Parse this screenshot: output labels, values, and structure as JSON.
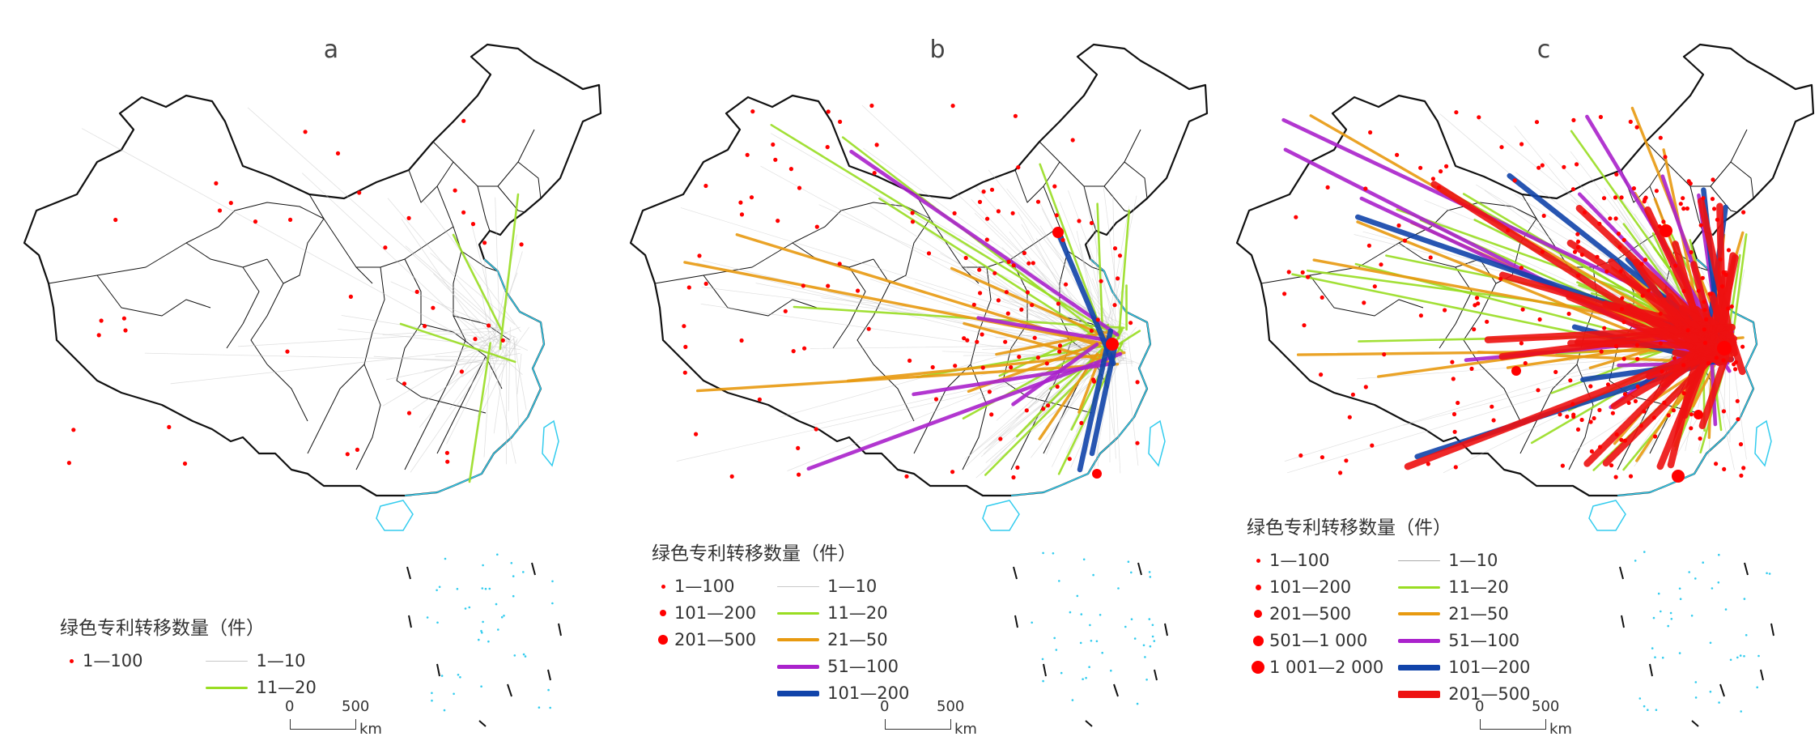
{
  "panels": [
    {
      "label": "a",
      "legend_title": "绿色专利转移数量（件）",
      "point_legend": [
        "1—100"
      ],
      "line_legend": [
        "1—10",
        "11—20"
      ],
      "scale": {
        "zero": "0",
        "distance": "500",
        "unit": "km"
      }
    },
    {
      "label": "b",
      "legend_title": "绿色专利转移数量（件）",
      "point_legend": [
        "1—100",
        "101—200",
        "201—500"
      ],
      "line_legend": [
        "1—10",
        "11—20",
        "21—50",
        "51—100",
        "101—200"
      ],
      "scale": {
        "zero": "0",
        "distance": "500",
        "unit": "km"
      }
    },
    {
      "label": "c",
      "legend_title": "绿色专利转移数量（件）",
      "point_legend": [
        "1—100",
        "101—200",
        "201—500",
        "501—1 000",
        "1 001—2 000"
      ],
      "line_legend": [
        "1—10",
        "11—20",
        "21—50",
        "51—100",
        "101—200",
        "201—500"
      ],
      "scale": {
        "zero": "0",
        "distance": "500",
        "unit": "km"
      }
    }
  ],
  "colors": {
    "boundary": "#111111",
    "coast": "#33ccee",
    "point": "#ff0000",
    "flow_1_10": "#c8c8c8",
    "flow_11_20": "#99dd22",
    "flow_21_50": "#e89a10",
    "flow_51_100": "#aa22cc",
    "flow_101_200": "#1144aa",
    "flow_201_500": "#ee1111"
  }
}
